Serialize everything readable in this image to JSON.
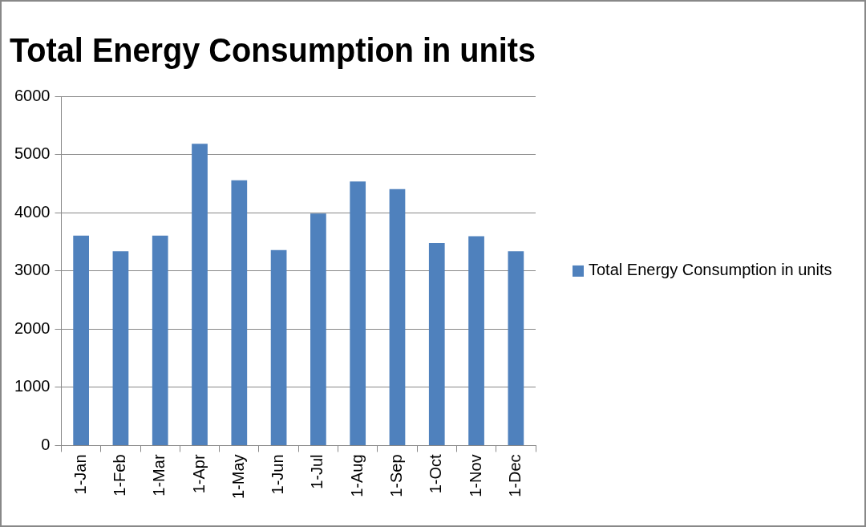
{
  "chart_data": {
    "type": "bar",
    "title": "Total Energy Consumption in units",
    "categories": [
      "1-Jan",
      "1-Feb",
      "1-Mar",
      "1-Apr",
      "1-May",
      "1-Jun",
      "1-Jul",
      "1-Aug",
      "1-Sep",
      "1-Oct",
      "1-Nov",
      "1-Dec"
    ],
    "series": [
      {
        "name": "Total Energy Consumption in units",
        "color": "#4f81bd",
        "values": [
          3610,
          3340,
          3610,
          5190,
          4560,
          3360,
          3990,
          4540,
          4410,
          3480,
          3600,
          3340
        ]
      }
    ],
    "ylim": [
      0,
      6000
    ],
    "yticks": [
      0,
      1000,
      2000,
      3000,
      4000,
      5000,
      6000
    ],
    "grid": "y",
    "legend": "right"
  }
}
